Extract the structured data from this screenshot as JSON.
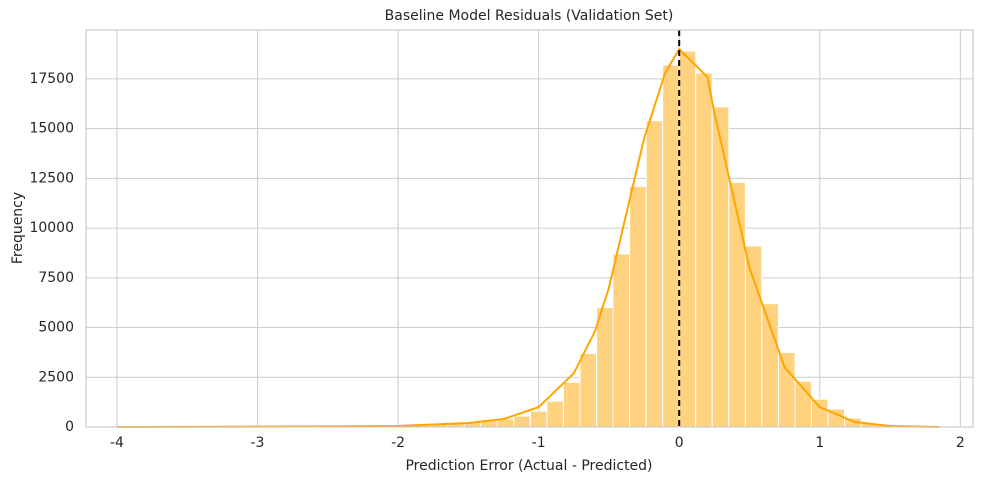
{
  "chart_data": {
    "type": "histogram",
    "title": "Baseline Model Residuals (Validation Set)",
    "x_label": "Prediction Error (Actual - Predicted)",
    "y_label": "Frequency",
    "bins": [
      -4,
      -3.882,
      -3.765,
      -3.647,
      -3.529,
      -3.412,
      -3.294,
      -3.176,
      -3.059,
      -2.941,
      -2.824,
      -2.706,
      -2.588,
      -2.471,
      -2.353,
      -2.235,
      -2.118,
      -2,
      -1.882,
      -1.765,
      -1.647,
      -1.529,
      -1.412,
      -1.294,
      -1.176,
      -1.059,
      -0.941,
      -0.824,
      -0.706,
      -0.588,
      -0.471,
      -0.353,
      -0.235,
      -0.118,
      0,
      0.118,
      0.235,
      0.353,
      0.471,
      0.588,
      0.706,
      0.824,
      0.941,
      1.059,
      1.176,
      1.294,
      1.412,
      1.529,
      1.647,
      1.765,
      1.882
    ],
    "counts": [
      2,
      1,
      0,
      1,
      3,
      2,
      4,
      5,
      8,
      10,
      12,
      15,
      20,
      25,
      35,
      45,
      60,
      80,
      110,
      150,
      200,
      250,
      300,
      400,
      550,
      800,
      1300,
      2250,
      3700,
      6000,
      8700,
      12100,
      15400,
      18200,
      18900,
      17800,
      16100,
      12300,
      9100,
      6200,
      3750,
      2300,
      1400,
      900,
      450,
      200,
      100,
      50,
      20,
      8
    ],
    "color": "#ffd27f",
    "kde": {
      "color": "#ffa500",
      "x": [
        -4,
        -3,
        -2,
        -1.5,
        -1.25,
        -1,
        -0.75,
        -0.6,
        -0.5,
        -0.25,
        -0.1,
        0,
        0.1,
        0.2,
        0.25,
        0.5,
        0.75,
        1,
        1.25,
        1.5,
        1.85
      ],
      "y": [
        0,
        20,
        50,
        200,
        400,
        1000,
        2700,
        4800,
        7000,
        14500,
        17800,
        19000,
        18300,
        17600,
        15800,
        8000,
        3000,
        1000,
        250,
        50,
        0
      ]
    },
    "vline": 0,
    "xlim": [
      -4.22,
      2.09
    ],
    "xticks": [
      -4,
      -3,
      -2,
      -1,
      0,
      1,
      2
    ],
    "ylim": [
      0,
      19960
    ],
    "yticks": [
      0,
      2500,
      5000,
      7500,
      10000,
      12500,
      15000,
      17500
    ],
    "grid": true
  }
}
